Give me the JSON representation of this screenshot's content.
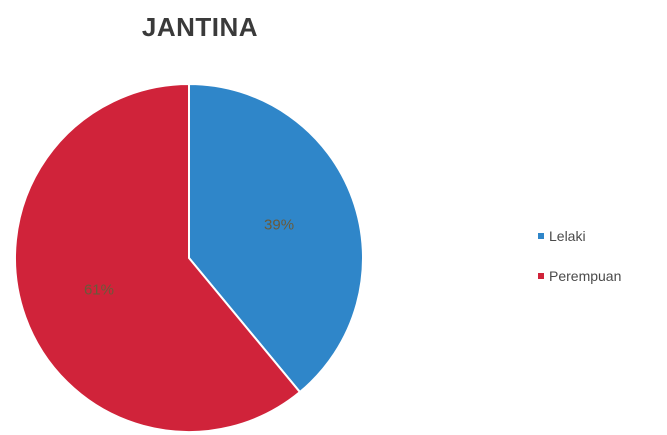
{
  "chart_data": {
    "type": "pie",
    "title": "JANTINA",
    "categories": [
      "Lelaki",
      "Perempuan"
    ],
    "values": [
      39,
      61
    ],
    "data_labels": [
      "39%",
      "61%"
    ],
    "colors": [
      "#2f86c9",
      "#d0233a"
    ],
    "legend_position": "right"
  }
}
